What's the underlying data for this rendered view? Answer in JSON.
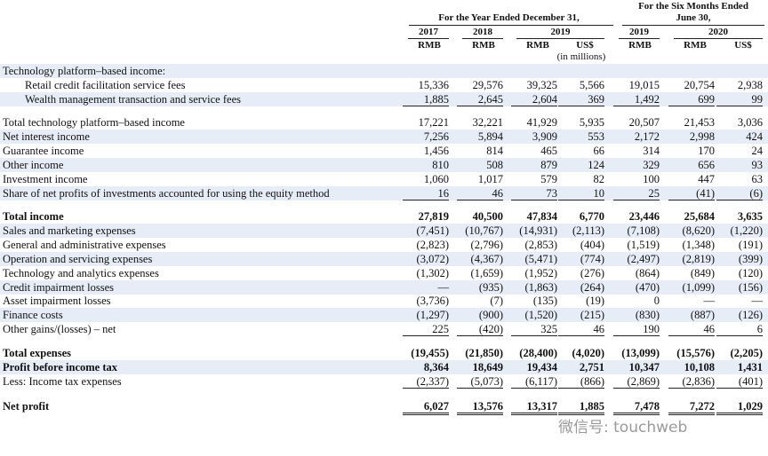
{
  "header": {
    "year_group": "For the Year Ended December 31,",
    "six_months_group": [
      "For the Six Months Ended",
      "June 30,"
    ],
    "years": [
      "2017",
      "2018",
      "2019",
      "2019",
      "2020"
    ],
    "currencies": [
      "RMB",
      "RMB",
      "RMB",
      "US$",
      "RMB",
      "RMB",
      "US$"
    ],
    "unit_note": "(in millions)"
  },
  "sections": [
    {
      "rows": [
        {
          "label": "Technology platform–based income:"
        },
        {
          "label": "Retail credit facilitation service fees",
          "values": [
            "15,336",
            "29,576",
            "39,325",
            "5,566",
            "19,015",
            "20,754",
            "2,938"
          ]
        },
        {
          "label": "Wealth management transaction and service fees",
          "values": [
            "1,885",
            "2,645",
            "2,604",
            "369",
            "1,492",
            "699",
            "99"
          ]
        }
      ]
    },
    {
      "rows": [
        {
          "label": "Total technology platform–based income",
          "values": [
            "17,221",
            "32,221",
            "41,929",
            "5,935",
            "20,507",
            "21,453",
            "3,036"
          ]
        },
        {
          "label": "Net interest income",
          "values": [
            "7,256",
            "5,894",
            "3,909",
            "553",
            "2,172",
            "2,998",
            "424"
          ]
        },
        {
          "label": "Guarantee income",
          "values": [
            "1,456",
            "814",
            "465",
            "66",
            "314",
            "170",
            "24"
          ]
        },
        {
          "label": "Other income",
          "values": [
            "810",
            "508",
            "879",
            "124",
            "329",
            "656",
            "93"
          ]
        },
        {
          "label": "Investment income",
          "values": [
            "1,060",
            "1,017",
            "579",
            "82",
            "100",
            "447",
            "63"
          ]
        },
        {
          "label": "Share of net profits of investments accounted for using the equity method",
          "values": [
            "16",
            "46",
            "73",
            "10",
            "25",
            "(41)",
            "(6)"
          ]
        }
      ]
    },
    {
      "rows": [
        {
          "label": "Total income",
          "values": [
            "27,819",
            "40,500",
            "47,834",
            "6,770",
            "23,446",
            "25,684",
            "3,635"
          ]
        },
        {
          "label": "Sales and marketing expenses",
          "values": [
            "(7,451)",
            "(10,767)",
            "(14,931)",
            "(2,113)",
            "(7,108)",
            "(8,620)",
            "(1,220)"
          ]
        },
        {
          "label": "General and administrative expenses",
          "values": [
            "(2,823)",
            "(2,796)",
            "(2,853)",
            "(404)",
            "(1,519)",
            "(1,348)",
            "(191)"
          ]
        },
        {
          "label": "Operation and servicing expenses",
          "values": [
            "(3,072)",
            "(4,367)",
            "(5,471)",
            "(774)",
            "(2,497)",
            "(2,819)",
            "(399)"
          ]
        },
        {
          "label": "Technology and analytics expenses",
          "values": [
            "(1,302)",
            "(1,659)",
            "(1,952)",
            "(276)",
            "(864)",
            "(849)",
            "(120)"
          ]
        },
        {
          "label": "Credit impairment losses",
          "values": [
            "—",
            "(935)",
            "(1,863)",
            "(264)",
            "(470)",
            "(1,099)",
            "(156)"
          ]
        },
        {
          "label": "Asset impairment losses",
          "values": [
            "(3,736)",
            "(7)",
            "(135)",
            "(19)",
            "0",
            "—",
            "—"
          ]
        },
        {
          "label": "Finance costs",
          "values": [
            "(1,297)",
            "(900)",
            "(1,520)",
            "(215)",
            "(830)",
            "(887)",
            "(126)"
          ]
        },
        {
          "label": "Other gains/(losses) – net",
          "values": [
            "225",
            "(420)",
            "325",
            "46",
            "190",
            "46",
            "6"
          ]
        }
      ]
    },
    {
      "rows": [
        {
          "label": "Total expenses",
          "values": [
            "(19,455)",
            "(21,850)",
            "(28,400)",
            "(4,020)",
            "(13,099)",
            "(15,576)",
            "(2,205)"
          ]
        },
        {
          "label": "Profit before income tax",
          "values": [
            "8,364",
            "18,649",
            "19,434",
            "2,751",
            "10,347",
            "10,108",
            "1,431"
          ]
        },
        {
          "label": "Less: Income tax expenses",
          "values": [
            "(2,337)",
            "(5,073)",
            "(6,117)",
            "(866)",
            "(2,869)",
            "(2,836)",
            "(401)"
          ]
        }
      ]
    },
    {
      "rows": [
        {
          "label": "Net profit",
          "values": [
            "6,027",
            "13,576",
            "13,317",
            "1,885",
            "7,478",
            "7,272",
            "1,029"
          ]
        }
      ]
    }
  ],
  "watermark": "微信号: touchweb"
}
